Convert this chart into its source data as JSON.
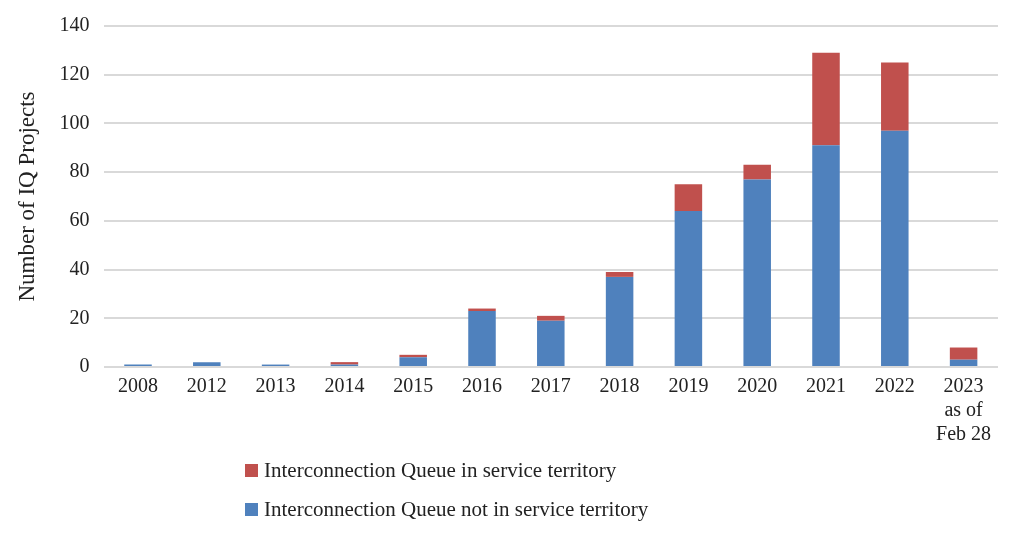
{
  "chart_data": {
    "type": "bar",
    "stacked": true,
    "ylabel": "Number of IQ Projects",
    "categories": [
      "2008",
      "2012",
      "2013",
      "2014",
      "2015",
      "2016",
      "2017",
      "2018",
      "2019",
      "2020",
      "2021",
      "2022",
      "2023\nas of\nFeb 28"
    ],
    "series": [
      {
        "name": "Interconnection Queue not in service territory",
        "color": "#4f81bd",
        "values": [
          1,
          2,
          1,
          1,
          4,
          23,
          19,
          37,
          64,
          77,
          91,
          97,
          3
        ]
      },
      {
        "name": "Interconnection Queue in service territory",
        "color": "#c0504d",
        "values": [
          0,
          0,
          0,
          1,
          1,
          1,
          2,
          2,
          11,
          6,
          38,
          28,
          5
        ]
      }
    ],
    "ylim": [
      0,
      140
    ],
    "yticks": [
      0,
      20,
      40,
      60,
      80,
      100,
      120,
      140
    ],
    "grid": "y",
    "legend": "bottom"
  }
}
